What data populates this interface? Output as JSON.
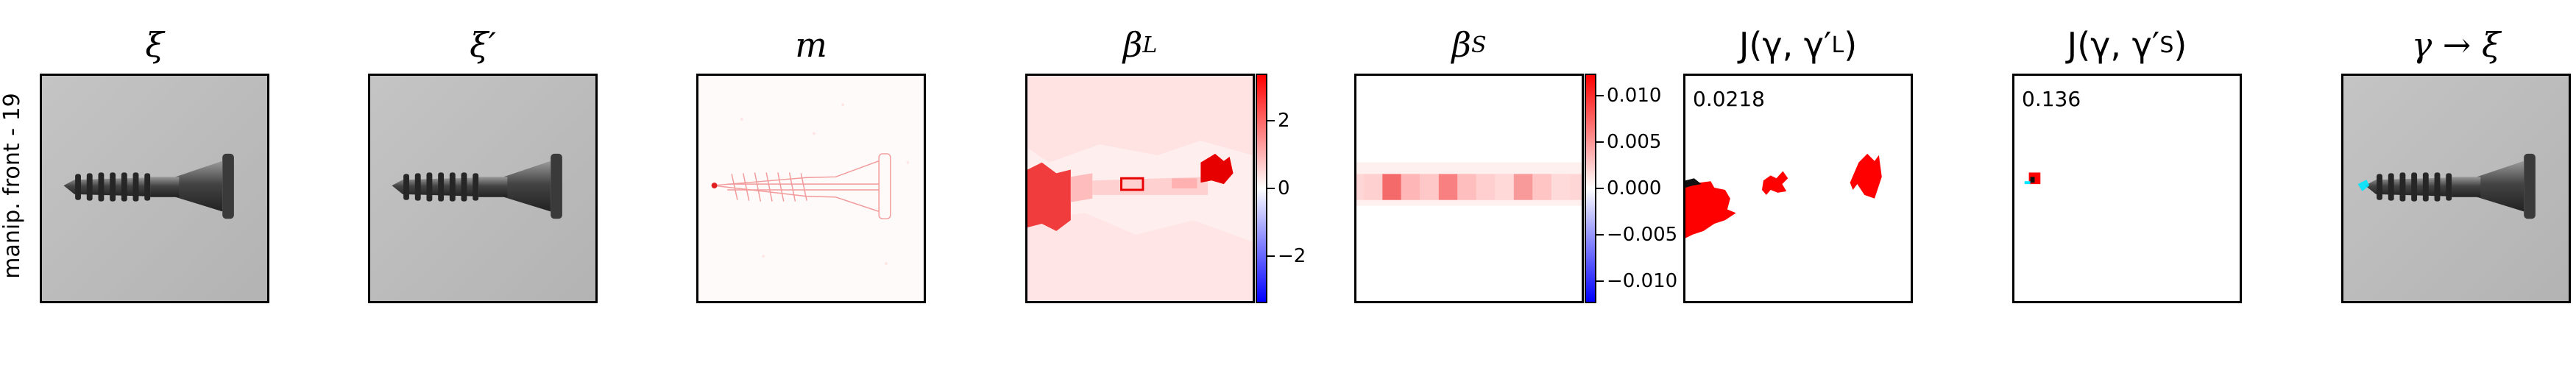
{
  "row_label": "manip. front - 19",
  "panels": [
    {
      "id": "xi",
      "title": "ξ"
    },
    {
      "id": "xi-prime",
      "title": "ξ′"
    },
    {
      "id": "m",
      "title": "m"
    },
    {
      "id": "beta-l",
      "title_main": "β",
      "title_sub": "L",
      "colorbar": {
        "ticks": [
          "2",
          "0",
          "−2"
        ]
      }
    },
    {
      "id": "beta-s",
      "title_main": "β",
      "title_sub": "S",
      "colorbar": {
        "ticks": [
          "0.010",
          "0.005",
          "0.000",
          "−0.005",
          "−0.010"
        ]
      }
    },
    {
      "id": "j-l",
      "title_main": "J(γ, γ′",
      "title_sub": "L",
      "title_end": ")",
      "score": "0.0218"
    },
    {
      "id": "j-s",
      "title_main": "J(γ, γ′",
      "title_sub": "S",
      "title_end": ")",
      "score": "0.136"
    },
    {
      "id": "gamma-xi",
      "title": "γ → ξ"
    }
  ],
  "colors": {
    "positive": "#ff0000",
    "negative": "#0000ff",
    "background_gray": "#bdbdbd",
    "mark_cyan": "#00e5ff"
  }
}
